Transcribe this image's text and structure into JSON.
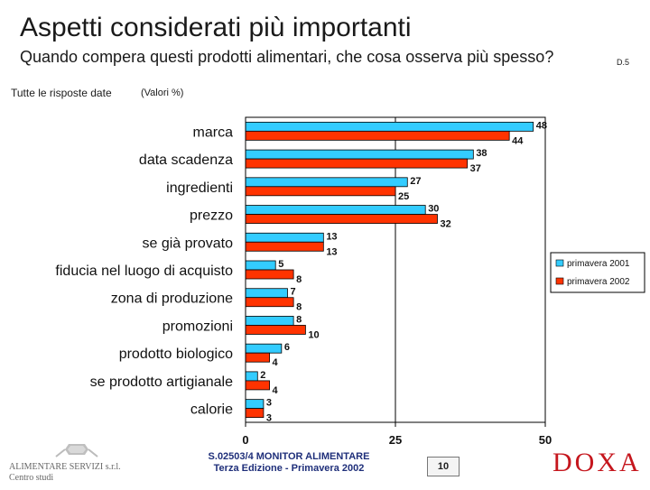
{
  "header": {
    "title": "Aspetti considerati più importanti",
    "subtitle": "Quando compera questi prodotti alimentari, che cosa osserva più spesso?",
    "question_ref": "D.5",
    "filter_label": "Tutte le risposte date",
    "unit_label": "(Valori %)"
  },
  "chart_data": {
    "type": "bar",
    "orientation": "horizontal",
    "title": "Aspetti considerati più importanti",
    "xlim": [
      0,
      50
    ],
    "xticks": [
      0,
      25,
      50
    ],
    "categories": [
      "marca",
      "data scadenza",
      "ingredienti",
      "prezzo",
      "se già provato",
      "fiducia nel luogo di acquisto",
      "zona di produzione",
      "promozioni",
      "prodotto biologico",
      "se prodotto artigianale",
      "calorie"
    ],
    "series": [
      {
        "name": "primavera 2001",
        "color": "#33ccff",
        "values": [
          48,
          38,
          27,
          30,
          13,
          5,
          7,
          8,
          6,
          2,
          3
        ]
      },
      {
        "name": "primavera 2002",
        "color": "#ff3300",
        "values": [
          44,
          37,
          25,
          32,
          13,
          8,
          8,
          10,
          4,
          4,
          3
        ]
      }
    ],
    "legend_position": "right"
  },
  "footer": {
    "org_line1": "ALIMENTARE SERVIZI s.r.l.",
    "org_line2": "Centro studi",
    "report_line1": "S.02503/4 MONITOR ALIMENTARE",
    "report_line2": "Terza Edizione - Primavera 2002",
    "page_number": "10",
    "brand": "DOXA"
  }
}
